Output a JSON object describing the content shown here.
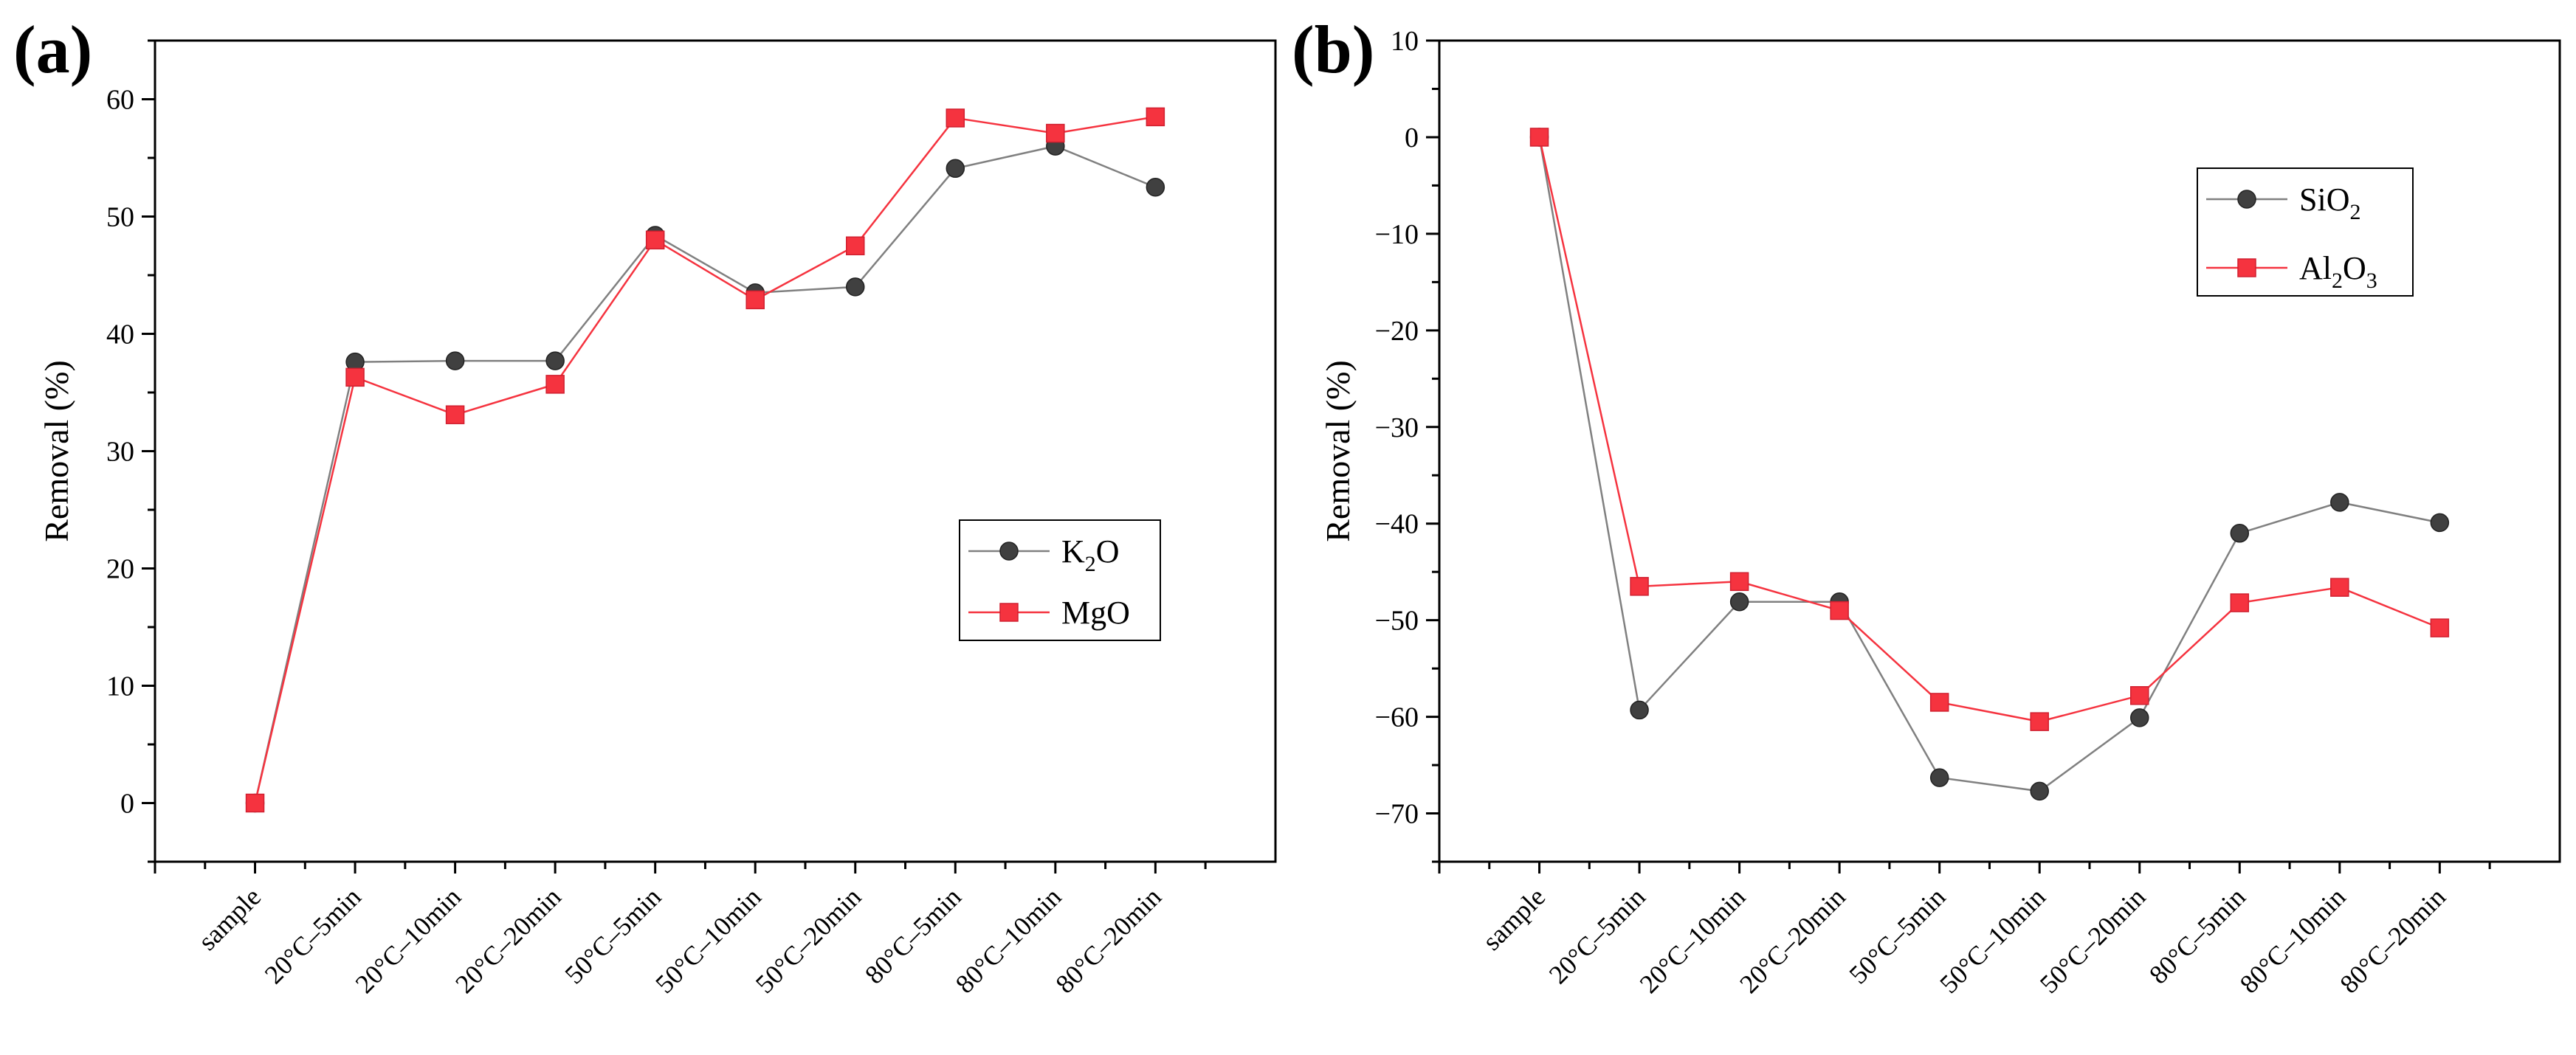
{
  "chart_data": [
    {
      "panel": "(a)",
      "type": "line",
      "ylabel": "Removal (%)",
      "xlabel": "",
      "ylim": [
        -5,
        65
      ],
      "yticks": [
        0,
        10,
        20,
        30,
        40,
        50,
        60
      ],
      "categories": [
        "sample",
        "20°C–5min",
        "20°C–10min",
        "20°C–20min",
        "50°C–5min",
        "50°C–10min",
        "50°C–20min",
        "80°C–5min",
        "80°C–10min",
        "80°C–20min"
      ],
      "series": [
        {
          "name": "K2O",
          "legend_main": "K",
          "legend_sub": "2",
          "legend_tail": "O",
          "color": "#404040",
          "marker": "circle",
          "line_color": "#808080",
          "values": [
            0,
            37.6,
            37.7,
            37.7,
            48.4,
            43.5,
            44.0,
            54.1,
            56.0,
            52.5
          ]
        },
        {
          "name": "MgO",
          "legend_main": "MgO",
          "legend_sub": "",
          "legend_tail": "",
          "color": "#f5333f",
          "marker": "square",
          "line_color": "#f5333f",
          "values": [
            0,
            36.3,
            33.1,
            35.7,
            48.0,
            42.9,
            47.5,
            58.4,
            57.1,
            58.5
          ]
        }
      ],
      "legend_position": "center-right"
    },
    {
      "panel": "(b)",
      "type": "line",
      "ylabel": "Removal (%)",
      "xlabel": "",
      "ylim": [
        -75,
        10
      ],
      "yticks": [
        10,
        0,
        -10,
        -20,
        -30,
        -40,
        -50,
        -60,
        -70
      ],
      "categories": [
        "sample",
        "20°C–5min",
        "20°C–10min",
        "20°C–20min",
        "50°C–5min",
        "50°C–10min",
        "50°C–20min",
        "80°C–5min",
        "80°C–10min",
        "80°C–20min"
      ],
      "series": [
        {
          "name": "SiO2",
          "legend_main": "SiO",
          "legend_sub": "2",
          "legend_tail": "",
          "color": "#404040",
          "marker": "circle",
          "line_color": "#808080",
          "values": [
            0,
            -59.3,
            -48.1,
            -48.1,
            -66.3,
            -67.7,
            -60.1,
            -41.0,
            -37.8,
            -39.9
          ]
        },
        {
          "name": "Al2O3",
          "legend_main": "Al",
          "legend_sub": "2",
          "legend_tail": "O",
          "legend_sub2": "3",
          "color": "#f5333f",
          "marker": "square",
          "line_color": "#f5333f",
          "values": [
            0,
            -46.5,
            -46.0,
            -49.0,
            -58.5,
            -60.5,
            -57.8,
            -48.2,
            -46.6,
            -50.8
          ]
        }
      ],
      "legend_position": "top-right"
    }
  ]
}
